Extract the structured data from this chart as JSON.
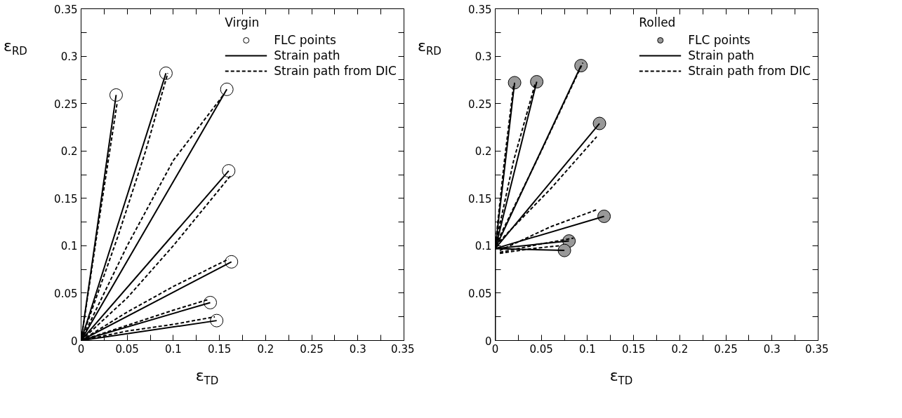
{
  "chart_data": [
    {
      "type": "line",
      "xlabel": "ε$_{TD}$",
      "ylabel": "ε$_{RD}$",
      "legend_title": "Virgin",
      "legend": "top right",
      "grid": false,
      "xlim": [
        0,
        0.35
      ],
      "ylim": [
        0,
        0.35
      ],
      "xticks": [
        0,
        {
          "value": 0.025,
          "label": null
        },
        0.05,
        {
          "value": 0.075,
          "label": null
        },
        0.1,
        {
          "value": 0.125,
          "label": null
        },
        0.15,
        {
          "value": 0.175,
          "label": null
        },
        0.2,
        {
          "value": 0.225,
          "label": null
        },
        0.25,
        {
          "value": 0.275,
          "label": null
        },
        0.3,
        {
          "value": 0.325,
          "label": null
        },
        0.35
      ],
      "yticks": [
        0,
        {
          "value": 0.025,
          "label": null
        },
        0.05,
        {
          "value": 0.075,
          "label": null
        },
        0.1,
        {
          "value": 0.125,
          "label": null
        },
        0.15,
        {
          "value": 0.175,
          "label": null
        },
        0.2,
        {
          "value": 0.225,
          "label": null
        },
        0.25,
        {
          "value": 0.275,
          "label": null
        },
        0.3,
        {
          "value": 0.325,
          "label": null
        },
        0.35
      ],
      "series": [
        {
          "type": "scatter",
          "name": "FLC points",
          "marker": "circle",
          "color": "#ffffff",
          "x": [
            0.038,
            0.092,
            0.158,
            0.16,
            0.163,
            0.14,
            0.147
          ],
          "values": [
            0.259,
            0.282,
            0.265,
            0.179,
            0.083,
            0.04,
            0.021
          ]
        },
        {
          "name": "Strain path",
          "line_style": "solid",
          "color": "#000000",
          "x": [
            0,
            0.038
          ],
          "values": [
            0,
            0.259
          ]
        },
        {
          "line_style": "solid",
          "color": "#000000",
          "x": [
            0,
            0.092
          ],
          "values": [
            0,
            0.282
          ]
        },
        {
          "line_style": "solid",
          "color": "#000000",
          "x": [
            0,
            0.158
          ],
          "values": [
            0,
            0.265
          ]
        },
        {
          "line_style": "solid",
          "color": "#000000",
          "x": [
            0,
            0.16
          ],
          "values": [
            0,
            0.179
          ]
        },
        {
          "line_style": "solid",
          "color": "#000000",
          "x": [
            0,
            0.163
          ],
          "values": [
            0,
            0.083
          ]
        },
        {
          "line_style": "solid",
          "color": "#000000",
          "x": [
            0,
            0.14
          ],
          "values": [
            0,
            0.04
          ]
        },
        {
          "line_style": "solid",
          "color": "#000000",
          "x": [
            0,
            0.147
          ],
          "values": [
            0,
            0.021
          ]
        },
        {
          "name": "Strain path from DIC",
          "line_style": "dashed",
          "color": "#000000",
          "x": [
            0,
            0.02,
            0.039
          ],
          "values": [
            0,
            0.13,
            0.25
          ]
        },
        {
          "line_style": "dashed",
          "color": "#000000",
          "x": [
            0,
            0.04,
            0.07,
            0.094
          ],
          "values": [
            0,
            0.11,
            0.2,
            0.282
          ]
        },
        {
          "line_style": "dashed",
          "color": "#000000",
          "x": [
            0,
            0.05,
            0.1,
            0.155
          ],
          "values": [
            0,
            0.1,
            0.19,
            0.26
          ]
        },
        {
          "line_style": "dashed",
          "color": "#000000",
          "x": [
            0,
            0.05,
            0.1,
            0.163
          ],
          "values": [
            0,
            0.045,
            0.1,
            0.175
          ]
        },
        {
          "line_style": "dashed",
          "color": "#000000",
          "x": [
            0,
            0.05,
            0.1,
            0.16
          ],
          "values": [
            0,
            0.03,
            0.057,
            0.086
          ]
        },
        {
          "line_style": "dashed",
          "color": "#000000",
          "x": [
            0,
            0.05,
            0.1,
            0.137
          ],
          "values": [
            0,
            0.016,
            0.032,
            0.043
          ]
        },
        {
          "line_style": "dashed",
          "color": "#000000",
          "x": [
            0,
            0.05,
            0.1,
            0.145
          ],
          "values": [
            0,
            0.01,
            0.017,
            0.025
          ]
        }
      ]
    },
    {
      "type": "line",
      "xlabel": "ε$_{TD}$",
      "ylabel": "ε$_{RD}$",
      "legend_title": "Rolled",
      "legend": "top right",
      "grid": false,
      "xlim": [
        0,
        0.35
      ],
      "ylim": [
        0,
        0.35
      ],
      "xticks": [
        0,
        {
          "value": 0.025,
          "label": null
        },
        0.05,
        {
          "value": 0.075,
          "label": null
        },
        0.1,
        {
          "value": 0.125,
          "label": null
        },
        0.15,
        {
          "value": 0.175,
          "label": null
        },
        0.2,
        {
          "value": 0.225,
          "label": null
        },
        0.25,
        {
          "value": 0.275,
          "label": null
        },
        0.3,
        {
          "value": 0.325,
          "label": null
        },
        0.35
      ],
      "yticks": [
        0,
        {
          "value": 0.025,
          "label": null
        },
        0.05,
        {
          "value": 0.075,
          "label": null
        },
        0.1,
        {
          "value": 0.125,
          "label": null
        },
        0.15,
        {
          "value": 0.175,
          "label": null
        },
        0.2,
        {
          "value": 0.225,
          "label": null
        },
        0.25,
        {
          "value": 0.275,
          "label": null
        },
        0.3,
        {
          "value": 0.325,
          "label": null
        },
        0.35
      ],
      "series": [
        {
          "type": "scatter",
          "name": "FLC points",
          "marker": "circle",
          "color": "#999999",
          "x": [
            0.021,
            0.045,
            0.093,
            0.113,
            0.118,
            0.08,
            0.075
          ],
          "values": [
            0.272,
            0.273,
            0.29,
            0.229,
            0.131,
            0.105,
            0.095
          ]
        },
        {
          "name": "Strain path",
          "line_style": "solid",
          "color": "#000000",
          "x": [
            0,
            0,
            0.021
          ],
          "values": [
            0,
            0.097,
            0.272
          ]
        },
        {
          "line_style": "solid",
          "color": "#000000",
          "x": [
            0,
            0.045
          ],
          "values": [
            0.097,
            0.273
          ]
        },
        {
          "line_style": "solid",
          "color": "#000000",
          "x": [
            0,
            0.093
          ],
          "values": [
            0.097,
            0.29
          ]
        },
        {
          "line_style": "solid",
          "color": "#000000",
          "x": [
            0,
            0.113
          ],
          "values": [
            0.097,
            0.229
          ]
        },
        {
          "line_style": "solid",
          "color": "#000000",
          "x": [
            0,
            0.118
          ],
          "values": [
            0.097,
            0.131
          ]
        },
        {
          "line_style": "solid",
          "color": "#000000",
          "x": [
            0,
            0.08
          ],
          "values": [
            0.097,
            0.105
          ]
        },
        {
          "line_style": "solid",
          "color": "#000000",
          "x": [
            0,
            0.075
          ],
          "values": [
            0.097,
            0.095
          ]
        },
        {
          "name": "Strain path from DIC",
          "line_style": "dashed",
          "color": "#000000",
          "x": [
            0,
            0.01,
            0.02
          ],
          "values": [
            0.1,
            0.19,
            0.27
          ]
        },
        {
          "line_style": "dashed",
          "color": "#000000",
          "x": [
            0,
            0.02,
            0.043
          ],
          "values": [
            0.1,
            0.19,
            0.27
          ]
        },
        {
          "line_style": "dashed",
          "color": "#000000",
          "x": [
            0,
            0.05,
            0.095
          ],
          "values": [
            0.1,
            0.2,
            0.293
          ]
        },
        {
          "line_style": "dashed",
          "color": "#000000",
          "x": [
            0,
            0.06,
            0.11
          ],
          "values": [
            0.1,
            0.16,
            0.215
          ]
        },
        {
          "line_style": "dashed",
          "color": "#000000",
          "x": [
            0.005,
            0.06,
            0.11
          ],
          "values": [
            0.095,
            0.12,
            0.138
          ]
        },
        {
          "line_style": "dashed",
          "color": "#000000",
          "x": [
            0.005,
            0.05,
            0.085
          ],
          "values": [
            0.093,
            0.102,
            0.108
          ]
        },
        {
          "line_style": "dashed",
          "color": "#000000",
          "x": [
            0.005,
            0.04,
            0.07
          ],
          "values": [
            0.092,
            0.097,
            0.1
          ]
        }
      ]
    }
  ]
}
